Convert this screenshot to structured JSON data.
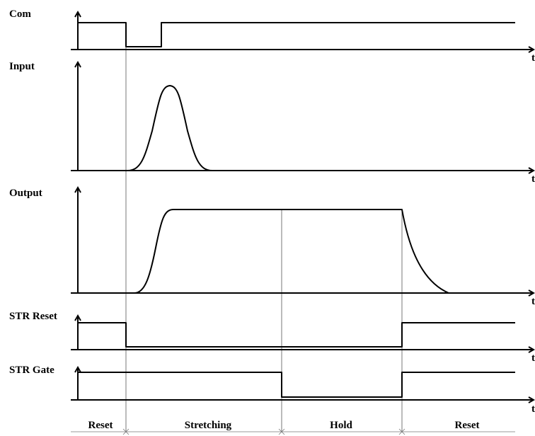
{
  "signals": {
    "com": "Com",
    "input": "Input",
    "output": "Output",
    "str_reset": "STR Reset",
    "str_gate": "STR Gate"
  },
  "axis_label": "t",
  "phases": [
    "Reset",
    "Stretching",
    "Hold",
    "Reset"
  ]
}
